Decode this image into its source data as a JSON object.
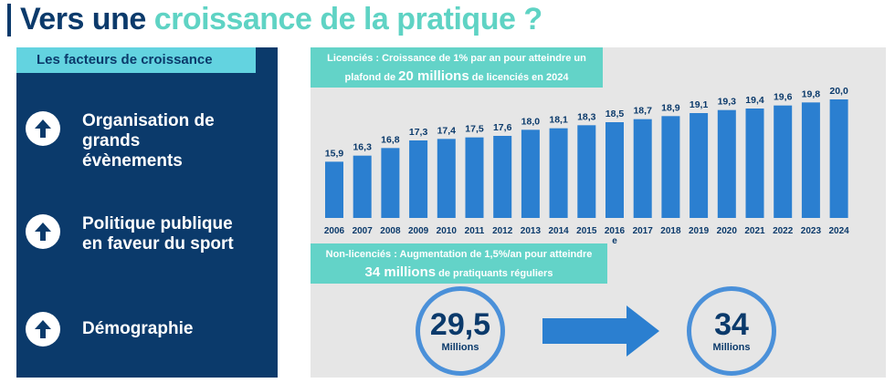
{
  "title": {
    "part1": "Vers une ",
    "part2": "croissance de la pratique ?"
  },
  "left": {
    "header": "Les facteurs de croissance",
    "factors": [
      {
        "label": "Organisation de\ngrands\névènements",
        "icon": "arrow-up-circle-icon"
      },
      {
        "label": "Politique publique\nen faveur du sport",
        "icon": "arrow-up-circle-icon"
      },
      {
        "label": "Démographie",
        "icon": "arrow-up-circle-icon"
      }
    ]
  },
  "callout_licencies": {
    "line1": "Licenciés : Croissance de 1% par an pour atteindre un",
    "line2_pre": "plafond de ",
    "line2_big": "20 millions",
    "line2_post": " de licenciés en 2024"
  },
  "callout_nonlicencies": {
    "line1": "Non-licenciés : Augmentation de 1,5%/an pour atteindre",
    "line2_big": "34 millions",
    "line2_post": " de pratiquants réguliers"
  },
  "circles": {
    "from": {
      "value": "29,5",
      "unit": "Millions"
    },
    "to": {
      "value": "34",
      "unit": "Millions"
    }
  },
  "colors": {
    "dark_blue": "#0b3a6b",
    "teal": "#5fd3c4",
    "bar": "#2b7fd0",
    "light_cyan": "#63d3e0"
  },
  "chart_data": {
    "type": "bar",
    "categories": [
      "2006",
      "2007",
      "2008",
      "2009",
      "2010",
      "2011",
      "2012",
      "2013",
      "2014",
      "2015",
      "2016\ne",
      "2017",
      "2018",
      "2019",
      "2020",
      "2021",
      "2022",
      "2023",
      "2024"
    ],
    "values": [
      15.9,
      16.3,
      16.8,
      17.3,
      17.4,
      17.5,
      17.6,
      18.0,
      18.1,
      18.3,
      18.5,
      18.7,
      18.9,
      19.1,
      19.3,
      19.4,
      19.6,
      19.8,
      20.0
    ],
    "labels": [
      "15,9",
      "16,3",
      "16,8",
      "17,3",
      "17,4",
      "17,5",
      "17,6",
      "18,0",
      "18,1",
      "18,3",
      "18,5",
      "18,7",
      "18,9",
      "19,1",
      "19,3",
      "19,4",
      "19,6",
      "19,8",
      "20,0"
    ],
    "title": "",
    "xlabel": "",
    "ylabel": "",
    "grid": false
  }
}
